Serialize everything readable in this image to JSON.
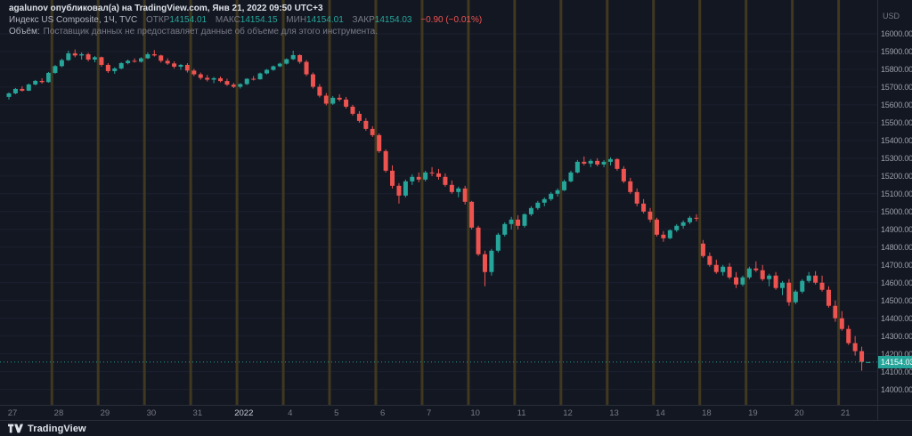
{
  "attribution": {
    "user": "agalunov",
    "rest": " опубликовал(а) на TradingView.com, Янв 21, 2022 09:50 UTC+3"
  },
  "legend": {
    "symbol": "Индекс US Composite, 1Ч, TVC",
    "fields": [
      {
        "label": "ОТКР",
        "value": "14154.01"
      },
      {
        "label": "МАКС",
        "value": "14154.15"
      },
      {
        "label": "МИН",
        "value": "14154.01"
      },
      {
        "label": "ЗАКР",
        "value": "14154.03"
      }
    ],
    "change": "−0.90 (−0.01%)"
  },
  "volume_notice": {
    "label": "Объём:",
    "message": "Поставщик данных не предоставляет данные об объеме для этого инструмента."
  },
  "price_axis": {
    "unit": "USD",
    "last_price": "14154.03"
  },
  "footer": {
    "brand": "TradingView"
  },
  "colors": {
    "background": "#131722",
    "up": "#26a69a",
    "down": "#ef5350",
    "grid": "#1c2030",
    "session_break": "#40381f",
    "axis_text": "#9aa0aa",
    "text_dim": "#787b86",
    "text_light": "#d5d9e0",
    "border": "#2a2e39"
  },
  "chart_data": {
    "type": "candlestick",
    "title": "Индекс US Composite, 1Ч, TVC",
    "ylabel": "USD",
    "ylim": [
      13913,
      16190
    ],
    "scale": {
      "top": 16190,
      "bottom": 13913
    },
    "y_ticks": [
      16000,
      15900,
      15800,
      15700,
      15600,
      15500,
      15400,
      15300,
      15200,
      15100,
      15000,
      14900,
      14800,
      14700,
      14600,
      14500,
      14400,
      14300,
      14200,
      14100,
      14000
    ],
    "last_price": 14154.03,
    "grid": true,
    "days": [
      {
        "label": "27",
        "candles": [
          [
            15645,
            15670,
            15630,
            15665
          ],
          [
            15665,
            15695,
            15660,
            15690
          ],
          [
            15690,
            15705,
            15675,
            15680
          ],
          [
            15680,
            15720,
            15678,
            15715
          ],
          [
            15715,
            15740,
            15710,
            15735
          ],
          [
            15735,
            15750,
            15720,
            15728
          ],
          [
            15728,
            15785,
            15725,
            15780
          ]
        ]
      },
      {
        "label": "28",
        "candles": [
          [
            15780,
            15825,
            15775,
            15818
          ],
          [
            15818,
            15860,
            15812,
            15852
          ],
          [
            15852,
            15905,
            15848,
            15890
          ],
          [
            15890,
            15912,
            15868,
            15878
          ],
          [
            15878,
            15895,
            15855,
            15885
          ],
          [
            15885,
            15893,
            15845,
            15855
          ],
          [
            15855,
            15875,
            15840,
            15868
          ]
        ]
      },
      {
        "label": "29",
        "candles": [
          [
            15868,
            15872,
            15815,
            15825
          ],
          [
            15825,
            15835,
            15780,
            15790
          ],
          [
            15790,
            15812,
            15775,
            15805
          ],
          [
            15805,
            15840,
            15800,
            15835
          ],
          [
            15835,
            15855,
            15828,
            15848
          ],
          [
            15848,
            15862,
            15838,
            15843
          ],
          [
            15843,
            15868,
            15838,
            15862
          ]
        ]
      },
      {
        "label": "30",
        "candles": [
          [
            15862,
            15895,
            15858,
            15885
          ],
          [
            15885,
            15908,
            15872,
            15878
          ],
          [
            15878,
            15882,
            15838,
            15848
          ],
          [
            15848,
            15862,
            15825,
            15833
          ],
          [
            15833,
            15845,
            15805,
            15815
          ],
          [
            15815,
            15830,
            15798,
            15825
          ],
          [
            15825,
            15835,
            15782,
            15793
          ]
        ]
      },
      {
        "label": "31",
        "candles": [
          [
            15793,
            15803,
            15762,
            15772
          ],
          [
            15772,
            15782,
            15742,
            15752
          ],
          [
            15752,
            15768,
            15732,
            15742
          ],
          [
            15742,
            15757,
            15722,
            15750
          ],
          [
            15750,
            15760,
            15727,
            15734
          ],
          [
            15734,
            15747,
            15707,
            15714
          ],
          [
            15714,
            15724,
            15695,
            15702
          ]
        ]
      },
      {
        "label": "2022",
        "emphasis": true,
        "candles": [
          [
            15702,
            15722,
            15692,
            15717
          ],
          [
            15717,
            15750,
            15712,
            15747
          ],
          [
            15747,
            15762,
            15737,
            15744
          ],
          [
            15744,
            15782,
            15742,
            15777
          ],
          [
            15777,
            15802,
            15772,
            15797
          ],
          [
            15797,
            15822,
            15792,
            15817
          ],
          [
            15817,
            15838,
            15812,
            15832
          ]
        ]
      },
      {
        "label": "4",
        "candles": [
          [
            15832,
            15862,
            15827,
            15857
          ],
          [
            15857,
            15905,
            15852,
            15880
          ],
          [
            15880,
            15885,
            15832,
            15842
          ],
          [
            15842,
            15852,
            15762,
            15772
          ],
          [
            15772,
            15782,
            15692,
            15702
          ],
          [
            15702,
            15717,
            15642,
            15652
          ],
          [
            15652,
            15667,
            15597,
            15607
          ]
        ]
      },
      {
        "label": "5",
        "candles": [
          [
            15607,
            15650,
            15600,
            15640
          ],
          [
            15640,
            15660,
            15620,
            15630
          ],
          [
            15630,
            15645,
            15580,
            15590
          ],
          [
            15590,
            15600,
            15540,
            15550
          ],
          [
            15550,
            15565,
            15500,
            15510
          ],
          [
            15510,
            15525,
            15455,
            15465
          ],
          [
            15465,
            15480,
            15420,
            15430
          ]
        ]
      },
      {
        "label": "6",
        "candles": [
          [
            15430,
            15440,
            15330,
            15340
          ],
          [
            15340,
            15350,
            15220,
            15230
          ],
          [
            15230,
            15260,
            15130,
            15145
          ],
          [
            15145,
            15160,
            15045,
            15090
          ],
          [
            15090,
            15180,
            15080,
            15170
          ],
          [
            15170,
            15210,
            15150,
            15195
          ],
          [
            15195,
            15220,
            15165,
            15180
          ]
        ]
      },
      {
        "label": "7",
        "candles": [
          [
            15180,
            15230,
            15170,
            15220
          ],
          [
            15220,
            15250,
            15200,
            15215
          ],
          [
            15215,
            15240,
            15180,
            15195
          ],
          [
            15195,
            15215,
            15140,
            15150
          ],
          [
            15150,
            15175,
            15100,
            15110
          ],
          [
            15110,
            15140,
            15080,
            15130
          ],
          [
            15130,
            15145,
            15040,
            15055
          ]
        ]
      },
      {
        "label": "10",
        "candles": [
          [
            15055,
            15060,
            14900,
            14910
          ],
          [
            14910,
            14920,
            14750,
            14760
          ],
          [
            14760,
            14780,
            14580,
            14660
          ],
          [
            14660,
            14790,
            14640,
            14780
          ],
          [
            14780,
            14880,
            14770,
            14870
          ],
          [
            14870,
            14940,
            14860,
            14930
          ],
          [
            14930,
            14970,
            14900,
            14955
          ]
        ]
      },
      {
        "label": "11",
        "candles": [
          [
            14955,
            14980,
            14900,
            14920
          ],
          [
            14920,
            14990,
            14910,
            14985
          ],
          [
            14985,
            15030,
            14975,
            15020
          ],
          [
            15020,
            15060,
            15010,
            15050
          ],
          [
            15050,
            15080,
            15030,
            15070
          ],
          [
            15070,
            15110,
            15060,
            15100
          ],
          [
            15100,
            15130,
            15085,
            15120
          ]
        ]
      },
      {
        "label": "12",
        "candles": [
          [
            15120,
            15180,
            15115,
            15170
          ],
          [
            15170,
            15230,
            15165,
            15220
          ],
          [
            15220,
            15290,
            15215,
            15280
          ],
          [
            15280,
            15310,
            15260,
            15270
          ],
          [
            15270,
            15295,
            15250,
            15285
          ],
          [
            15285,
            15300,
            15255,
            15265
          ],
          [
            15265,
            15290,
            15250,
            15280
          ]
        ]
      },
      {
        "label": "13",
        "candles": [
          [
            15280,
            15305,
            15260,
            15295
          ],
          [
            15295,
            15300,
            15230,
            15240
          ],
          [
            15240,
            15255,
            15160,
            15170
          ],
          [
            15170,
            15190,
            15100,
            15110
          ],
          [
            15110,
            15130,
            15030,
            15045
          ],
          [
            15045,
            15070,
            14990,
            15000
          ],
          [
            15000,
            15020,
            14940,
            14955
          ]
        ]
      },
      {
        "label": "14",
        "candles": [
          [
            14955,
            14965,
            14860,
            14870
          ],
          [
            14870,
            14890,
            14830,
            14850
          ],
          [
            14850,
            14900,
            14845,
            14895
          ],
          [
            14895,
            14930,
            14885,
            14920
          ],
          [
            14920,
            14950,
            14905,
            14940
          ],
          [
            14940,
            14975,
            14930,
            14965
          ],
          [
            14965,
            14985,
            14945,
            14960
          ]
        ]
      },
      {
        "label": "18",
        "candles": [
          [
            14820,
            14840,
            14740,
            14750
          ],
          [
            14750,
            14770,
            14690,
            14700
          ],
          [
            14700,
            14730,
            14650,
            14660
          ],
          [
            14660,
            14700,
            14640,
            14690
          ],
          [
            14690,
            14710,
            14620,
            14630
          ],
          [
            14630,
            14660,
            14570,
            14590
          ],
          [
            14590,
            14640,
            14580,
            14630
          ]
        ]
      },
      {
        "label": "19",
        "candles": [
          [
            14630,
            14690,
            14620,
            14680
          ],
          [
            14680,
            14720,
            14660,
            14670
          ],
          [
            14670,
            14700,
            14610,
            14620
          ],
          [
            14620,
            14650,
            14580,
            14640
          ],
          [
            14640,
            14660,
            14560,
            14570
          ],
          [
            14570,
            14610,
            14530,
            14600
          ],
          [
            14600,
            14620,
            14470,
            14490
          ]
        ]
      },
      {
        "label": "20",
        "candles": [
          [
            14490,
            14560,
            14480,
            14550
          ],
          [
            14550,
            14620,
            14540,
            14610
          ],
          [
            14610,
            14660,
            14600,
            14640
          ],
          [
            14640,
            14665,
            14590,
            14600
          ],
          [
            14600,
            14640,
            14550,
            14560
          ],
          [
            14560,
            14580,
            14460,
            14470
          ],
          [
            14470,
            14500,
            14380,
            14400
          ]
        ]
      },
      {
        "label": "21",
        "candles": [
          [
            14400,
            14440,
            14330,
            14340
          ],
          [
            14340,
            14360,
            14250,
            14260
          ],
          [
            14260,
            14300,
            14190,
            14215
          ],
          [
            14215,
            14240,
            14105,
            14154.93
          ],
          [
            14154.01,
            14154.15,
            14154.01,
            14154.03
          ]
        ]
      }
    ]
  }
}
